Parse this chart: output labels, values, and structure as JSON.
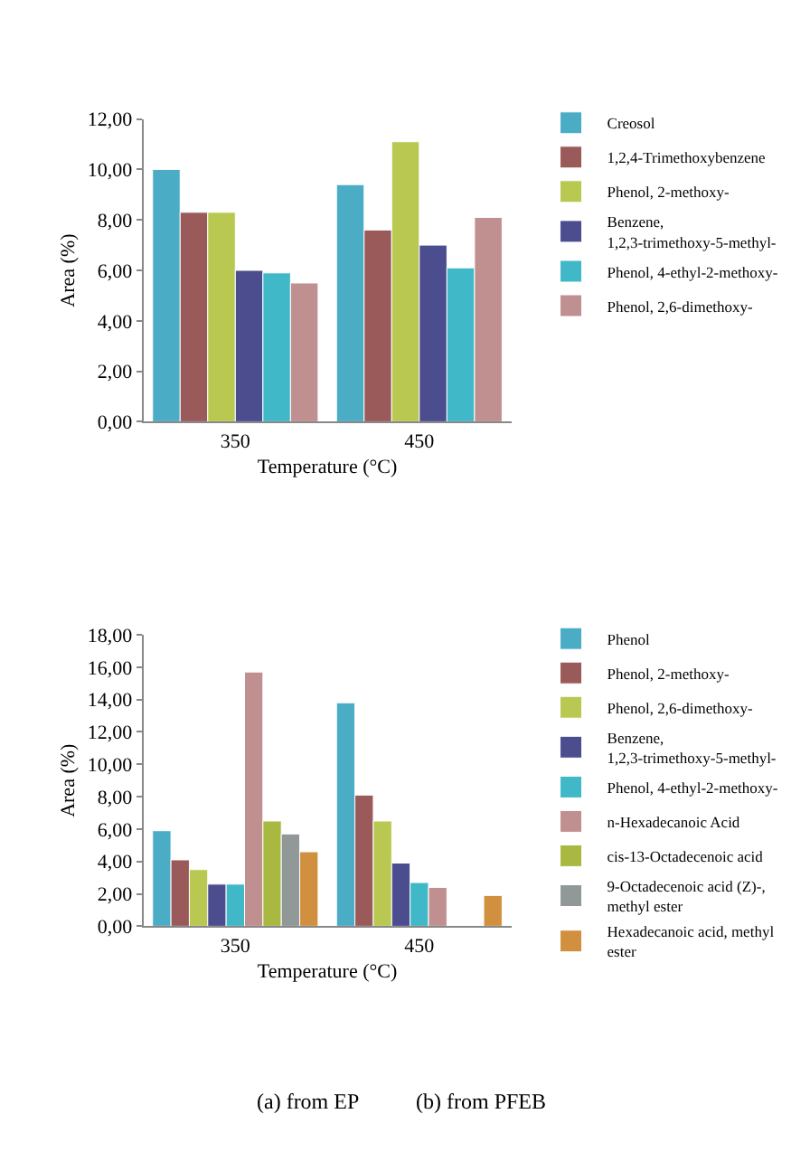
{
  "chart_data": [
    {
      "type": "bar",
      "xlabel": "Temperature (°C)",
      "ylabel": "Area (%)",
      "categories": [
        "350",
        "450"
      ],
      "series": [
        {
          "name": "Creosol",
          "color": "#4bacc6",
          "values": [
            10.0,
            9.4
          ]
        },
        {
          "name": "1,2,4-Trimethoxybenzene",
          "color": "#9b5a5a",
          "values": [
            8.3,
            7.6
          ]
        },
        {
          "name": "Phenol, 2-methoxy-",
          "color": "#b8c850",
          "values": [
            8.3,
            11.1
          ]
        },
        {
          "name": "Benzene, 1,2,3-trimethoxy-5-methyl-",
          "color": "#4b4d8f",
          "values": [
            6.0,
            7.0
          ]
        },
        {
          "name": "Phenol, 4-ethyl-2-methoxy-",
          "color": "#40b8c8",
          "values": [
            5.9,
            6.1
          ]
        },
        {
          "name": "Phenol, 2,6-dimethoxy-",
          "color": "#c09090",
          "values": [
            5.5,
            8.1
          ]
        }
      ],
      "ylim": [
        0,
        12
      ],
      "yticks": [
        {
          "value": 0,
          "label": "0,00"
        },
        {
          "value": 2,
          "label": "2,00"
        },
        {
          "value": 4,
          "label": "4,00"
        },
        {
          "value": 6,
          "label": "6,00"
        },
        {
          "value": 8,
          "label": "8,00"
        },
        {
          "value": 10,
          "label": "10,00"
        },
        {
          "value": 12,
          "label": "12,00"
        }
      ],
      "legend": "right",
      "annotations": [
        "(a) from EP"
      ]
    },
    {
      "type": "bar",
      "xlabel": "Temperature (°C)",
      "ylabel": "Area (%)",
      "categories": [
        "350",
        "450"
      ],
      "series": [
        {
          "name": "Phenol",
          "color": "#4bacc6",
          "values": [
            5.9,
            13.8
          ]
        },
        {
          "name": "Phenol, 2-methoxy-",
          "color": "#9b5a5a",
          "values": [
            4.1,
            8.1
          ]
        },
        {
          "name": "Phenol, 2,6-dimethoxy-",
          "color": "#b8c850",
          "values": [
            3.5,
            6.5
          ]
        },
        {
          "name": "Benzene, 1,2,3-trimethoxy-5-methyl-",
          "color": "#4b4d8f",
          "values": [
            2.6,
            3.9
          ]
        },
        {
          "name": "Phenol, 4-ethyl-2-methoxy-",
          "color": "#40b8c8",
          "values": [
            2.6,
            2.7
          ]
        },
        {
          "name": "n-Hexadecanoic Acid",
          "color": "#c09090",
          "values": [
            15.7,
            2.4
          ]
        },
        {
          "name": "cis-13-Octadecenoic acid",
          "color": "#a8b840",
          "values": [
            6.5,
            null
          ]
        },
        {
          "name": "9-Octadecenoic acid (Z)-, methyl ester",
          "color": "#909898",
          "values": [
            5.7,
            null
          ]
        },
        {
          "name": "Hexadecanoic acid, methyl ester",
          "color": "#d09040",
          "values": [
            4.6,
            1.9
          ]
        }
      ],
      "ylim": [
        0,
        18
      ],
      "yticks": [
        {
          "value": 0,
          "label": "0,00"
        },
        {
          "value": 2,
          "label": "2,00"
        },
        {
          "value": 4,
          "label": "4,00"
        },
        {
          "value": 6,
          "label": "6,00"
        },
        {
          "value": 8,
          "label": "8,00"
        },
        {
          "value": 10,
          "label": "10,00"
        },
        {
          "value": 12,
          "label": "12,00"
        },
        {
          "value": 14,
          "label": "14,00"
        },
        {
          "value": 16,
          "label": "16,00"
        },
        {
          "value": 18,
          "label": "18,00"
        }
      ],
      "legend": "right",
      "annotations": [
        "(b) from PFEB"
      ]
    }
  ]
}
